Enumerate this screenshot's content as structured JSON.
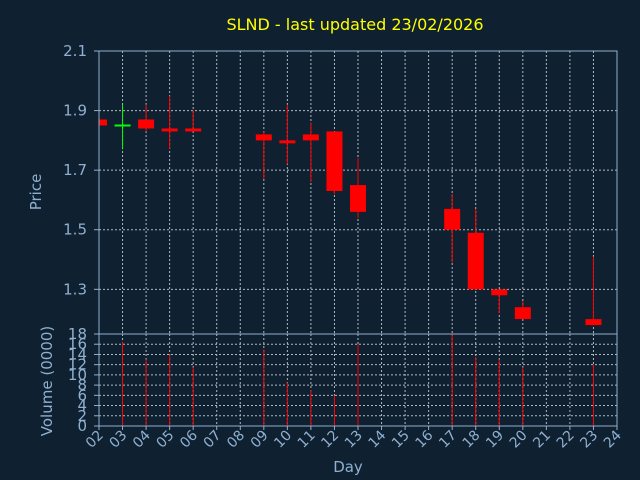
{
  "chart_data": {
    "type": "candlestick",
    "title": "SLND - last updated 23/02/2026",
    "price_axis": {
      "ylabel": "Price",
      "ylim": [
        1.15,
        2.1
      ],
      "ticks": [
        "2.1",
        "1.9",
        "1.7",
        "1.5",
        "1.3"
      ],
      "tick_values": [
        2.1,
        1.9,
        1.7,
        1.5,
        1.3
      ],
      "grid": true
    },
    "volume_axis": {
      "ylabel": "Volume (0000)",
      "ylim": [
        0,
        18
      ],
      "ticks": [
        "18",
        "16",
        "14",
        "12",
        "10",
        "8",
        "6",
        "4",
        "2",
        "0"
      ],
      "tick_values": [
        18,
        16,
        14,
        12,
        10,
        8,
        6,
        4,
        2,
        0
      ],
      "grid": true
    },
    "x_axis": {
      "xlabel": "Day",
      "ticks": [
        "02",
        "03",
        "04",
        "05",
        "06",
        "07",
        "08",
        "09",
        "10",
        "11",
        "12",
        "13",
        "14",
        "15",
        "16",
        "17",
        "18",
        "19",
        "20",
        "21",
        "22",
        "23",
        "24"
      ],
      "xlim": [
        2,
        24
      ]
    },
    "candles": [
      {
        "day": 2,
        "open": 1.87,
        "high": 1.88,
        "low": 1.85,
        "close": 1.85,
        "volume": 0
      },
      {
        "day": 3,
        "open": 1.85,
        "high": 1.92,
        "low": 1.77,
        "close": 1.85,
        "volume": 16.5
      },
      {
        "day": 4,
        "open": 1.87,
        "high": 1.92,
        "low": 1.83,
        "close": 1.84,
        "volume": 13
      },
      {
        "day": 5,
        "open": 1.84,
        "high": 1.95,
        "low": 1.77,
        "close": 1.83,
        "volume": 14
      },
      {
        "day": 6,
        "open": 1.84,
        "high": 1.9,
        "low": 1.83,
        "close": 1.83,
        "volume": 11.5
      },
      {
        "day": 9,
        "open": 1.82,
        "high": 1.83,
        "low": 1.67,
        "close": 1.8,
        "volume": 15
      },
      {
        "day": 10,
        "open": 1.8,
        "high": 1.92,
        "low": 1.72,
        "close": 1.79,
        "volume": 8.5
      },
      {
        "day": 11,
        "open": 1.82,
        "high": 1.86,
        "low": 1.66,
        "close": 1.8,
        "volume": 7
      },
      {
        "day": 12,
        "open": 1.83,
        "high": 1.83,
        "low": 1.62,
        "close": 1.63,
        "volume": 6
      },
      {
        "day": 13,
        "open": 1.65,
        "high": 1.74,
        "low": 1.54,
        "close": 1.56,
        "volume": 16
      },
      {
        "day": 17,
        "open": 1.57,
        "high": 1.62,
        "low": 1.39,
        "close": 1.5,
        "volume": 18
      },
      {
        "day": 18,
        "open": 1.49,
        "high": 1.57,
        "low": 1.3,
        "close": 1.3,
        "volume": 13.5
      },
      {
        "day": 19,
        "open": 1.3,
        "high": 1.3,
        "low": 1.22,
        "close": 1.28,
        "volume": 13
      },
      {
        "day": 20,
        "open": 1.24,
        "high": 1.26,
        "low": 1.2,
        "close": 1.2,
        "volume": 11.5
      },
      {
        "day": 23,
        "open": 1.2,
        "high": 1.41,
        "low": 1.18,
        "close": 1.18,
        "volume": 12
      }
    ],
    "colors": {
      "background": "#0f2030",
      "down": "#ff0000",
      "up": "#00ff00",
      "axis_text": "#8fb0d0",
      "title": "#ffff00",
      "grid": "#b0b8c0"
    }
  }
}
